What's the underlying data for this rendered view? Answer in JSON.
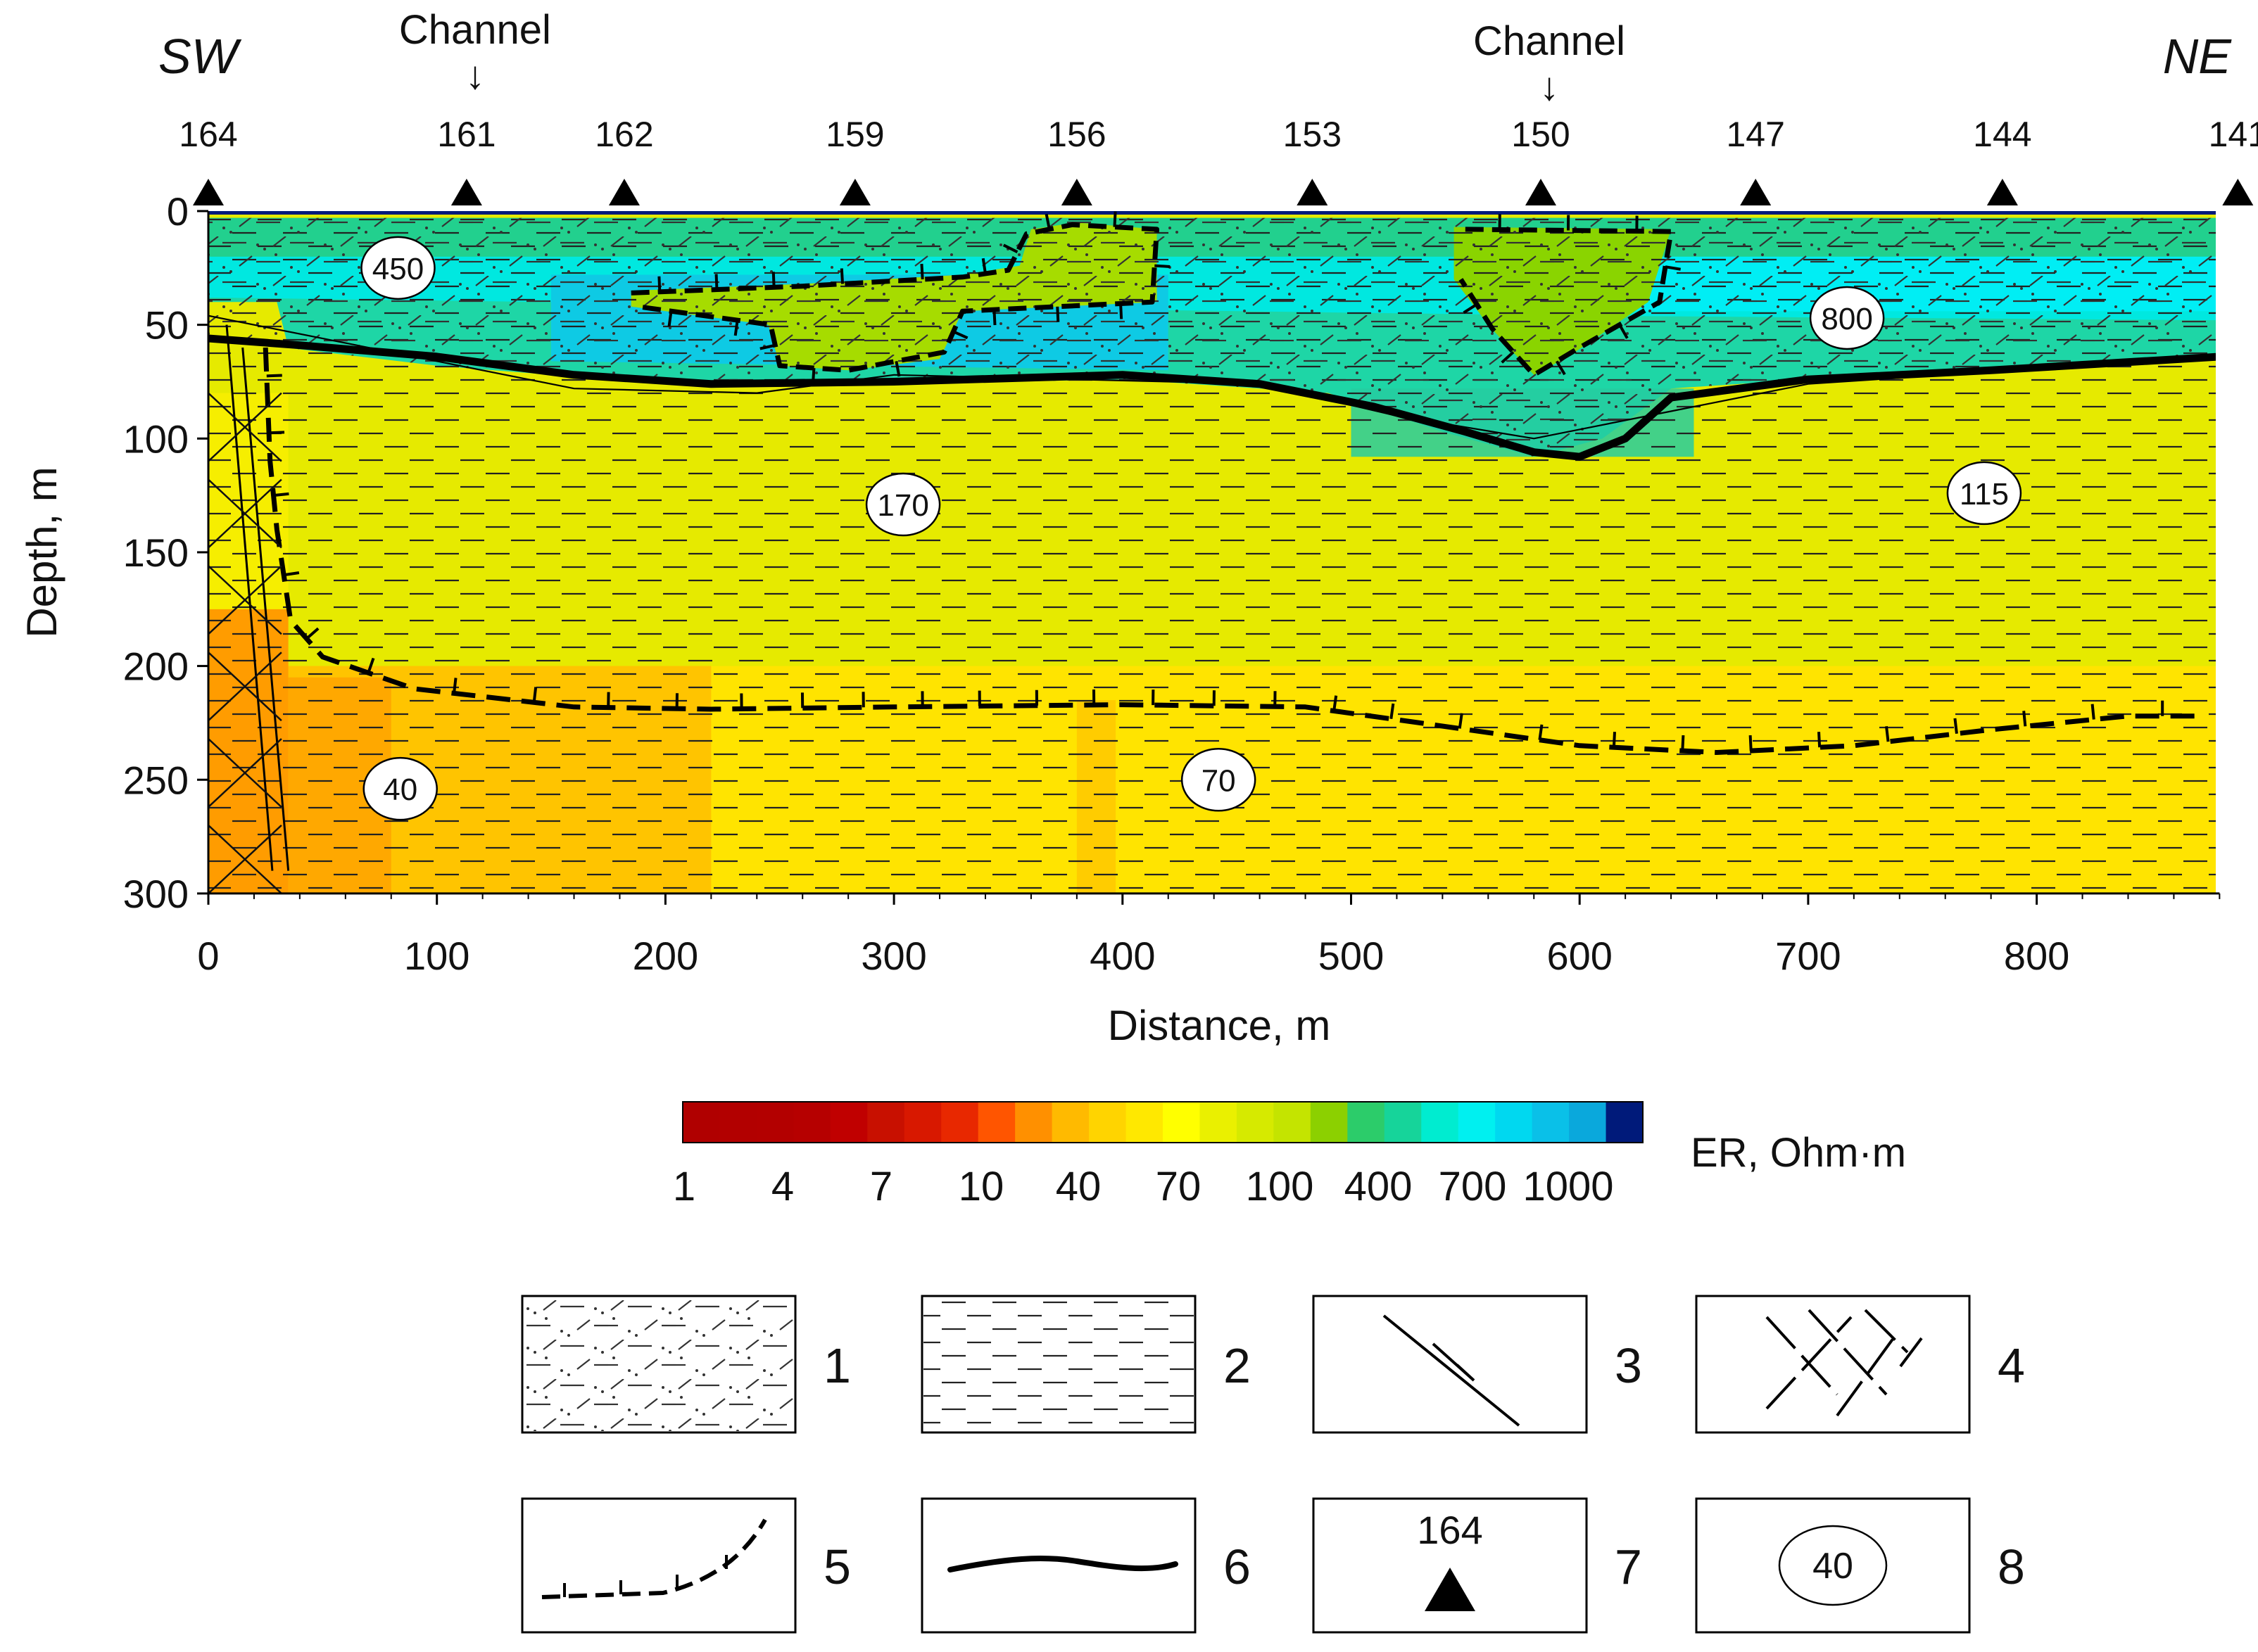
{
  "orientation": {
    "left": "SW",
    "right": "NE"
  },
  "channels": [
    {
      "label": "Channel",
      "arrow": "↓",
      "distance": 113
    },
    {
      "label": "Channel",
      "arrow": "↓",
      "distance": 583
    }
  ],
  "stations": [
    {
      "id": "164",
      "distance": 0
    },
    {
      "id": "161",
      "distance": 113
    },
    {
      "id": "162",
      "distance": 182
    },
    {
      "id": "159",
      "distance": 283
    },
    {
      "id": "156",
      "distance": 380
    },
    {
      "id": "153",
      "distance": 483
    },
    {
      "id": "150",
      "distance": 583
    },
    {
      "id": "147",
      "distance": 677
    },
    {
      "id": "144",
      "distance": 785
    },
    {
      "id": "141",
      "distance": 888
    }
  ],
  "axes": {
    "x": {
      "label": "Distance, m",
      "min": 0,
      "max": 880,
      "ticks": [
        "0",
        "100",
        "200",
        "300",
        "400",
        "500",
        "600",
        "700",
        "800"
      ]
    },
    "y": {
      "label": "Depth, m",
      "min": 0,
      "max": 300,
      "ticks": [
        "0",
        "50",
        "100",
        "150",
        "200",
        "250",
        "300"
      ]
    }
  },
  "resistivity_labels": [
    {
      "value": "450",
      "distance": 83,
      "depth": 25
    },
    {
      "value": "800",
      "distance": 717,
      "depth": 47
    },
    {
      "value": "170",
      "distance": 304,
      "depth": 129
    },
    {
      "value": "115",
      "distance": 777,
      "depth": 124
    },
    {
      "value": "40",
      "distance": 84,
      "depth": 254
    },
    {
      "value": "70",
      "distance": 442,
      "depth": 250
    }
  ],
  "colorbar": {
    "title": "ER, Ohm·m",
    "tick_labels": [
      "1",
      "4",
      "7",
      "10",
      "40",
      "70",
      "100",
      "400",
      "700",
      "1000"
    ],
    "colors": [
      "#b00000",
      "#b20000",
      "#b30000",
      "#b60000",
      "#c00000",
      "#c81000",
      "#d81800",
      "#e82800",
      "#ff5500",
      "#ff9000",
      "#ffba00",
      "#ffd400",
      "#ffe800",
      "#ffff00",
      "#eaf000",
      "#d6ea00",
      "#c4e400",
      "#8cd000",
      "#2ccc6a",
      "#16d49a",
      "#00ecd0",
      "#00f0f0",
      "#00d8f0",
      "#0ac0e8",
      "#0aa8dc",
      "#001a7a"
    ]
  },
  "legend": [
    {
      "num": "1",
      "symbol": "sandy-clay-hatch"
    },
    {
      "num": "2",
      "symbol": "clay-dash-hatch"
    },
    {
      "num": "3",
      "symbol": "fault-line"
    },
    {
      "num": "4",
      "symbol": "fracture-zone"
    },
    {
      "num": "5",
      "symbol": "hachured-boundary"
    },
    {
      "num": "6",
      "symbol": "bold-boundary"
    },
    {
      "num": "7",
      "symbol": "station-marker",
      "example": "164"
    },
    {
      "num": "8",
      "symbol": "resistivity-label",
      "example": "40"
    }
  ]
}
